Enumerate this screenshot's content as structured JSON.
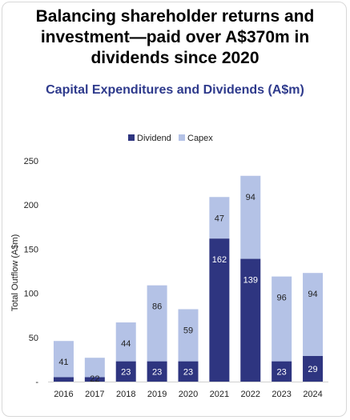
{
  "headline": "Balancing shareholder returns and investment—paid over A$370m in dividends since 2020",
  "chart_data": {
    "type": "bar",
    "stacked": true,
    "title": "Capital Expenditures and Dividends (A$m)",
    "xlabel": "",
    "ylabel": "Total Outflow (A$m)",
    "ylim": [
      0,
      250
    ],
    "yticks": [
      0,
      50,
      100,
      150,
      200,
      250
    ],
    "ytick_labels": [
      "-",
      "50",
      "100",
      "150",
      "200",
      "250"
    ],
    "grid": false,
    "legend": "top-center",
    "categories": [
      "2016",
      "2017",
      "2018",
      "2019",
      "2020",
      "2021",
      "2022",
      "2023",
      "2024"
    ],
    "series": [
      {
        "name": "Dividend",
        "color": "#2e3580",
        "values": [
          5,
          5,
          23,
          23,
          23,
          162,
          139,
          23,
          29
        ],
        "labels": [
          "",
          "",
          "23",
          "23",
          "23",
          "162",
          "139",
          "23",
          "29"
        ]
      },
      {
        "name": "Capex",
        "color": "#b4c2e6",
        "values": [
          41,
          22,
          44,
          86,
          59,
          47,
          94,
          96,
          94
        ],
        "labels": [
          "41",
          "22",
          "44",
          "86",
          "59",
          "47",
          "94",
          "96",
          "94"
        ]
      }
    ]
  }
}
